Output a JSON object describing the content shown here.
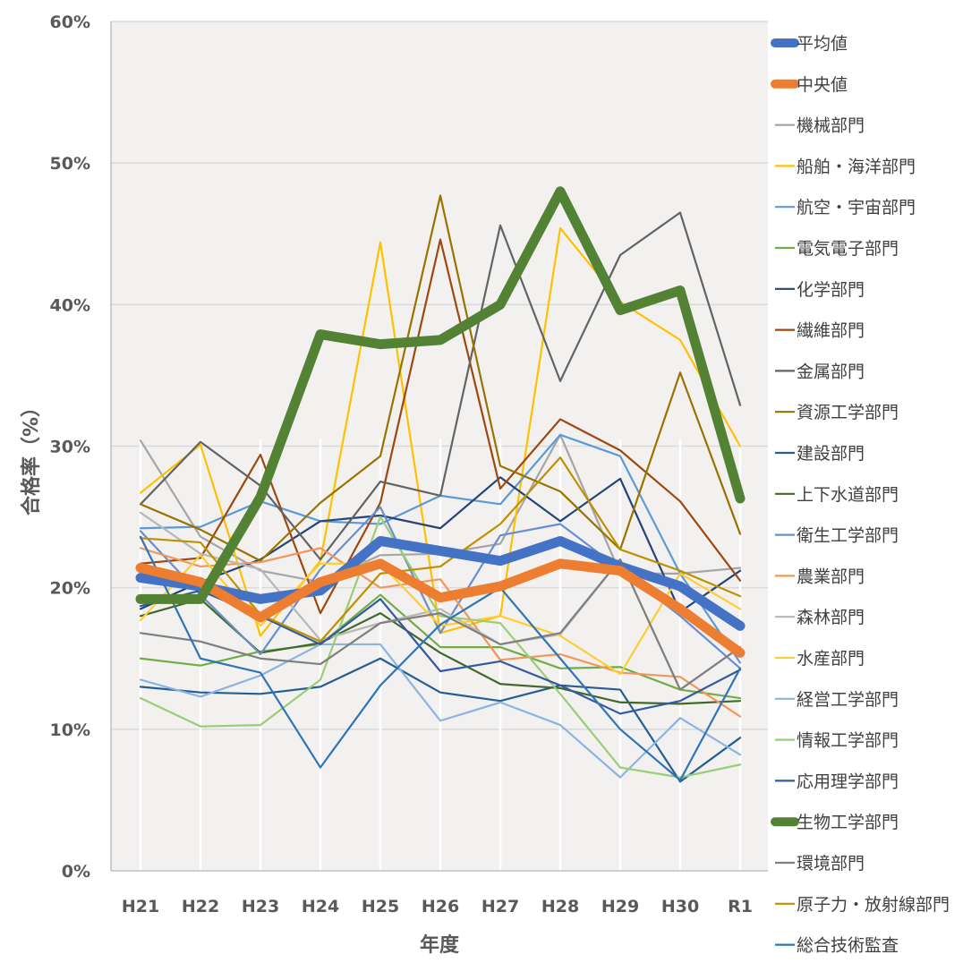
{
  "chart_data": {
    "type": "line",
    "title": "",
    "xlabel": "年度",
    "ylabel": "合格率（%）",
    "ylim": [
      0,
      60
    ],
    "yticks": [
      "0%",
      "10%",
      "20%",
      "30%",
      "40%",
      "50%",
      "60%"
    ],
    "ytick_values": [
      0,
      10,
      20,
      30,
      40,
      50,
      60
    ],
    "categories": [
      "H21",
      "H22",
      "H23",
      "H24",
      "H25",
      "H26",
      "H27",
      "H28",
      "H29",
      "H30",
      "R1"
    ],
    "grid": true,
    "legend_position": "right",
    "series": [
      {
        "name": "平均値",
        "color": "#4472c4",
        "thick": true,
        "values": [
          20.7,
          20.1,
          19.2,
          19.8,
          23.3,
          22.6,
          21.9,
          23.3,
          21.5,
          20.1,
          17.3
        ]
      },
      {
        "name": "中央値",
        "color": "#ed7d31",
        "thick": true,
        "values": [
          21.4,
          20.4,
          17.9,
          20.4,
          21.7,
          19.3,
          20.1,
          21.7,
          21.2,
          18.5,
          15.4
        ]
      },
      {
        "name": "機械部門",
        "color": "#a5a5a5",
        "values": [
          30.4,
          23.6,
          21.2,
          20.4,
          22.3,
          22.4,
          23.1,
          30.8,
          21.0,
          21.0,
          21.4
        ]
      },
      {
        "name": "船舶・海洋部門",
        "color": "#ffc000",
        "values": [
          26.7,
          30.1,
          16.6,
          21.9,
          44.4,
          16.8,
          18.0,
          45.4,
          40.2,
          37.5,
          30.0
        ]
      },
      {
        "name": "航空・宇宙部門",
        "color": "#5b9bd5",
        "values": [
          24.2,
          24.3,
          26.1,
          24.7,
          24.5,
          26.5,
          25.9,
          30.8,
          29.3,
          21.0,
          14.7
        ]
      },
      {
        "name": "電気電子部門",
        "color": "#70ad47",
        "values": [
          15.0,
          14.5,
          15.5,
          16.0,
          19.5,
          15.8,
          15.8,
          14.3,
          14.4,
          12.8,
          12.2
        ]
      },
      {
        "name": "化学部門",
        "color": "#264478",
        "values": [
          18.5,
          20.4,
          22.0,
          24.7,
          25.1,
          24.2,
          27.8,
          24.7,
          27.7,
          18.3,
          21.2
        ]
      },
      {
        "name": "繊維部門",
        "color": "#9e480e",
        "values": [
          21.7,
          22.1,
          29.4,
          18.2,
          26.0,
          44.6,
          27.0,
          31.9,
          29.7,
          26.1,
          20.5
        ]
      },
      {
        "name": "金属部門",
        "color": "#636363",
        "values": [
          25.9,
          30.3,
          27.2,
          22.0,
          27.5,
          26.5,
          45.6,
          34.6,
          43.5,
          46.5,
          32.9
        ]
      },
      {
        "name": "資源工学部門",
        "color": "#997300",
        "values": [
          25.9,
          24.1,
          21.9,
          26.0,
          29.3,
          47.7,
          28.6,
          26.8,
          22.7,
          35.2,
          23.8
        ]
      },
      {
        "name": "建設部門",
        "color": "#255e91",
        "values": [
          13.0,
          12.6,
          12.5,
          13.0,
          15.0,
          12.6,
          12.0,
          13.1,
          12.8,
          6.3,
          9.4
        ]
      },
      {
        "name": "上下水道部門",
        "color": "#43682b",
        "values": [
          18.0,
          19.2,
          15.4,
          16.1,
          18.2,
          15.4,
          13.2,
          12.9,
          11.9,
          11.8,
          12.0
        ]
      },
      {
        "name": "衛生工学部門",
        "color": "#698ed0",
        "values": [
          24.0,
          19.5,
          15.3,
          21.3,
          25.7,
          16.8,
          23.7,
          24.5,
          21.3,
          18.0,
          14.3
        ]
      },
      {
        "name": "農業部門",
        "color": "#f1975a",
        "values": [
          22.8,
          21.5,
          21.8,
          22.8,
          20.0,
          20.6,
          14.9,
          15.3,
          14.0,
          13.7,
          10.9
        ]
      },
      {
        "name": "森林部門",
        "color": "#b7b7b7",
        "values": [
          25.3,
          22.4,
          21.3,
          16.3,
          17.5,
          18.5,
          16.0,
          16.7,
          22.0,
          12.8,
          15.8
        ]
      },
      {
        "name": "水産部門",
        "color": "#ffcd33",
        "values": [
          17.7,
          22.3,
          17.3,
          21.7,
          21.7,
          17.3,
          18.0,
          16.6,
          13.9,
          21.0,
          18.5
        ]
      },
      {
        "name": "経営工学部門",
        "color": "#8cb4e2",
        "values": [
          13.5,
          12.3,
          13.8,
          16.0,
          16.0,
          10.6,
          11.9,
          10.3,
          6.6,
          10.8,
          8.2
        ]
      },
      {
        "name": "情報工学部門",
        "color": "#9acd75",
        "values": [
          12.2,
          10.2,
          10.3,
          13.5,
          25.0,
          18.0,
          17.5,
          12.5,
          7.3,
          6.6,
          7.5
        ]
      },
      {
        "name": "応用理学部門",
        "color": "#335aa1",
        "values": [
          18.7,
          19.8,
          18.0,
          16.0,
          19.2,
          14.1,
          14.8,
          13.1,
          11.1,
          12.0,
          14.2
        ]
      },
      {
        "name": "生物工学部門",
        "color": "#548235",
        "thick": true,
        "values": [
          19.2,
          19.2,
          26.4,
          37.9,
          37.2,
          37.5,
          40.0,
          48.0,
          39.6,
          41.0,
          26.3
        ]
      },
      {
        "name": "環境部門",
        "color": "#7f7f7f",
        "values": [
          16.8,
          16.2,
          15.0,
          14.6,
          17.5,
          18.2,
          16.0,
          16.8,
          22.0,
          12.8,
          15.8
        ]
      },
      {
        "name": "原子力・放射線部門",
        "color": "#bf9000",
        "values": [
          23.5,
          23.2,
          18.1,
          16.2,
          21.0,
          21.5,
          24.5,
          29.2,
          22.7,
          21.2,
          19.4
        ]
      },
      {
        "name": "総合技術監査",
        "color": "#2e75b6",
        "values": [
          23.6,
          15.0,
          14.0,
          7.3,
          13.1,
          17.4,
          20.0,
          15.0,
          10.0,
          6.4,
          14.3
        ]
      }
    ]
  }
}
